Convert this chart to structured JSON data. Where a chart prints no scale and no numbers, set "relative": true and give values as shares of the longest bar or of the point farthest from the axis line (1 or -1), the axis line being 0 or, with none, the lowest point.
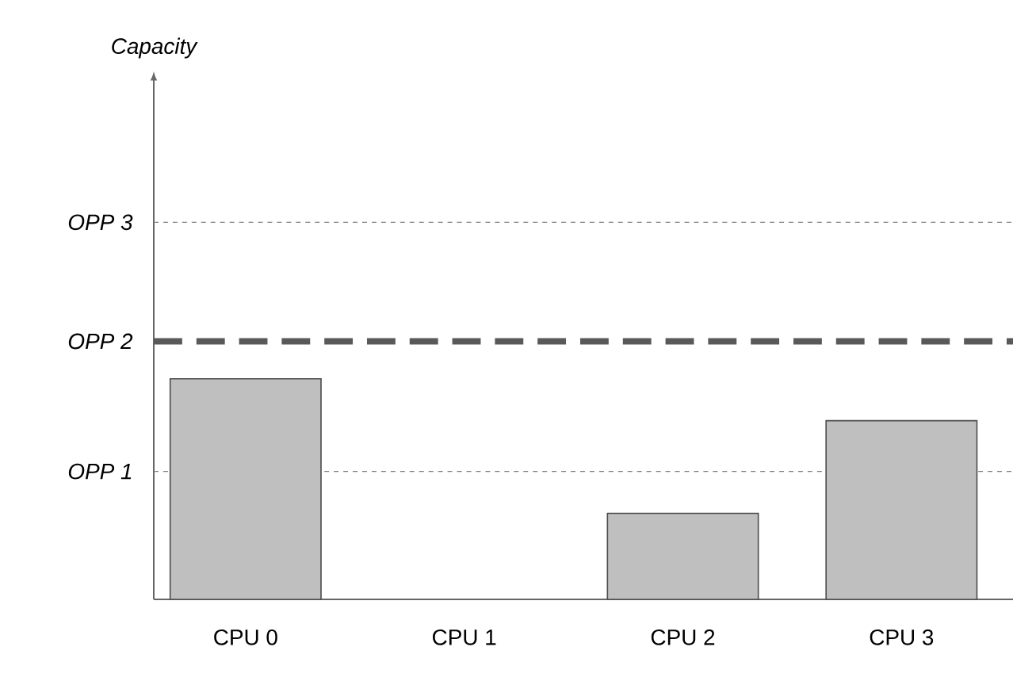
{
  "chart_data": {
    "type": "bar",
    "annotations": [
      "Capacity"
    ],
    "relative": true,
    "categories": [
      "CPU 0",
      "CPU 1",
      "CPU 2",
      "CPU 3"
    ],
    "values": [
      1,
      0,
      0.39,
      0.81
    ],
    "color": "#bfbfbf",
    "ref_lines": [
      {
        "axis": "y",
        "value": 0.58,
        "label": "OPP 1",
        "color": "#7f7f7f",
        "line_style": "dashed"
      },
      {
        "axis": "y",
        "value": 1.17,
        "label": "OPP 2",
        "color": "#595959",
        "line_style": "long dashed"
      },
      {
        "axis": "y",
        "value": 1.71,
        "label": "OPP 3",
        "color": "#7f7f7f",
        "line_style": "dashed"
      }
    ]
  }
}
